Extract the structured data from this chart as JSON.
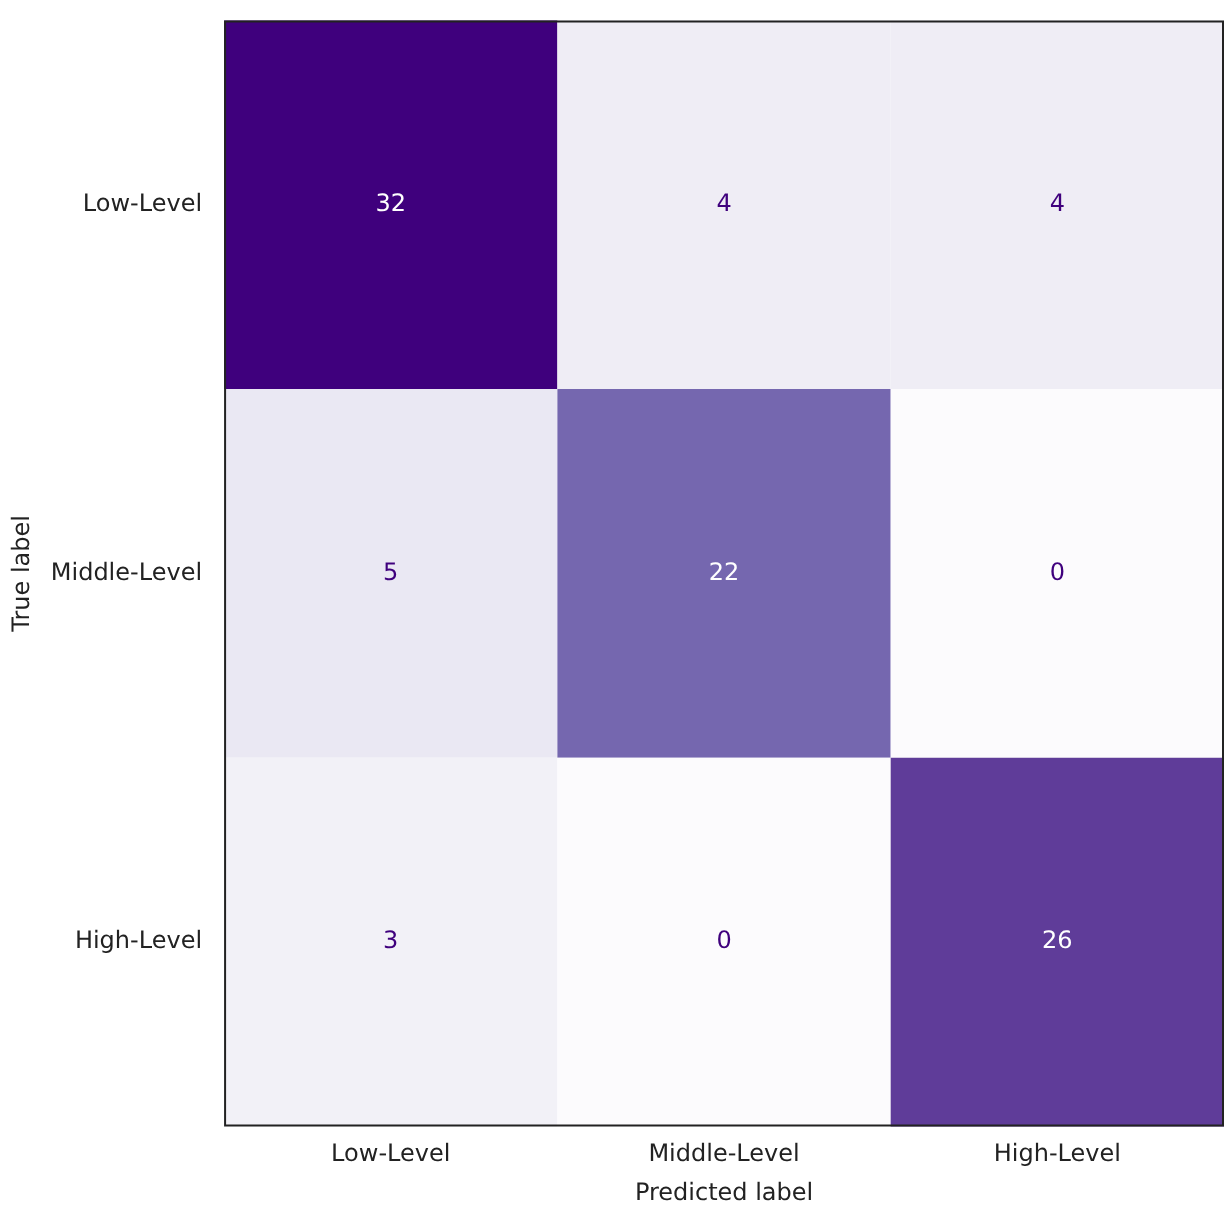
{
  "chart_data": {
    "type": "heatmap",
    "xlabel": "Predicted label",
    "ylabel": "True label",
    "categories": [
      "Low-Level",
      "Middle-Level",
      "High-Level"
    ],
    "y_categories": [
      "Low-Level",
      "Middle-Level",
      "High-Level"
    ],
    "cells": [
      [
        32,
        4,
        4
      ],
      [
        5,
        22,
        0
      ],
      [
        3,
        0,
        26
      ]
    ],
    "data_labels": true,
    "grid": false
  }
}
